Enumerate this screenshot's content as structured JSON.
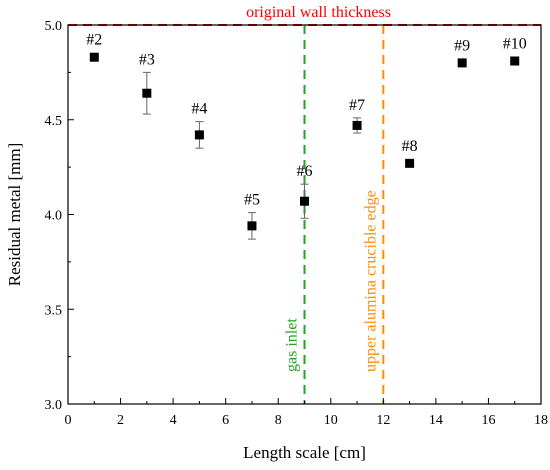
{
  "chart_data": {
    "type": "scatter",
    "title": "",
    "xlabel": "Length scale [cm]",
    "ylabel": "Residual metal [mm]",
    "xlim": [
      0,
      18
    ],
    "ylim": [
      3.0,
      5.0
    ],
    "xticks": [
      0,
      2,
      4,
      6,
      8,
      10,
      12,
      14,
      16,
      18
    ],
    "yticks": [
      3.0,
      3.5,
      4.0,
      4.5,
      5.0
    ],
    "xtick_labels": [
      "0",
      "2",
      "4",
      "6",
      "8",
      "10",
      "12",
      "14",
      "16",
      "18"
    ],
    "ytick_labels": [
      "3.0",
      "3.5",
      "4.0",
      "4.5",
      "5.0"
    ],
    "grid": false,
    "marker_color": "#000000",
    "points": [
      {
        "label": "#2",
        "x": 1,
        "y": 4.83,
        "err": 0.0
      },
      {
        "label": "#3",
        "x": 3,
        "y": 4.64,
        "err": 0.11
      },
      {
        "label": "#4",
        "x": 5,
        "y": 4.42,
        "err": 0.07
      },
      {
        "label": "#5",
        "x": 7,
        "y": 3.94,
        "err": 0.07
      },
      {
        "label": "#6",
        "x": 9,
        "y": 4.07,
        "err": 0.09
      },
      {
        "label": "#7",
        "x": 11,
        "y": 4.47,
        "err": 0.04
      },
      {
        "label": "#8",
        "x": 13,
        "y": 4.27,
        "err": 0.0
      },
      {
        "label": "#9",
        "x": 15,
        "y": 4.8,
        "err": 0.0
      },
      {
        "label": "#10",
        "x": 17,
        "y": 4.81,
        "err": 0.0
      }
    ],
    "reference_lines": [
      {
        "orientation": "horizontal",
        "value": 5.0,
        "label": "original wall thickness",
        "color": "#ff0000",
        "style": "dashed"
      },
      {
        "orientation": "vertical",
        "value": 9,
        "label": "gas inlet",
        "color": "#1fa51f",
        "style": "dashed"
      },
      {
        "orientation": "vertical",
        "value": 12,
        "label": "upper alumina crucible edge",
        "color": "#ff8c00",
        "style": "dashed"
      }
    ]
  }
}
